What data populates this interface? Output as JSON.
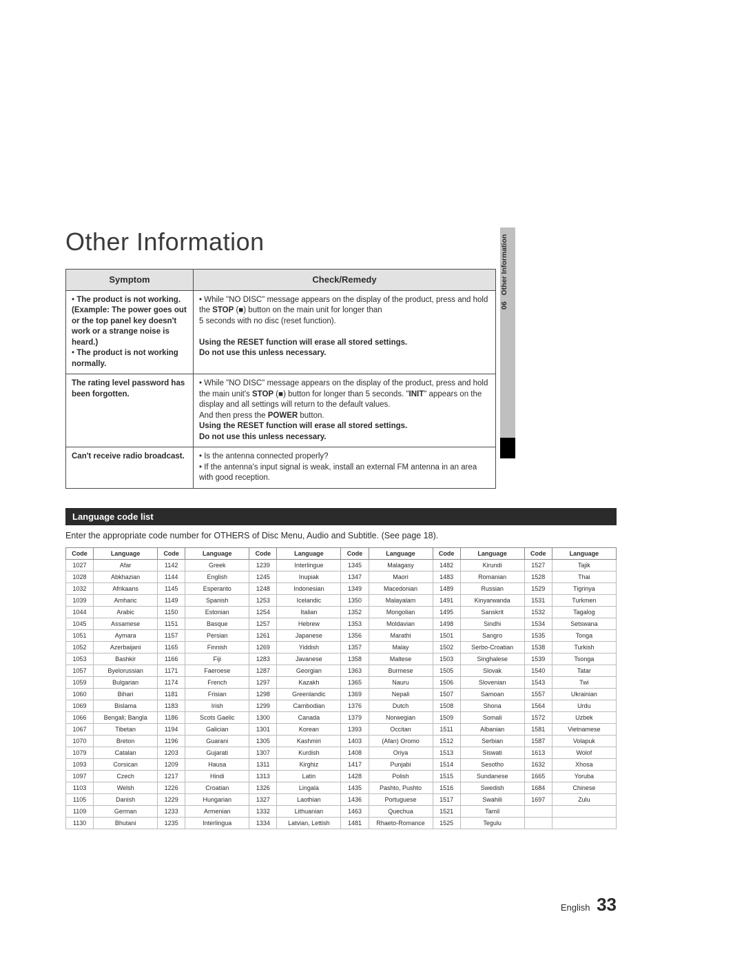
{
  "title": "Other Information",
  "chapter_num": "06",
  "chapter_label": "Other Information",
  "footer_lang": "English",
  "footer_page": "33",
  "sym_header": {
    "col1": "Symptom",
    "col2": "Check/Remedy"
  },
  "sym_rows": [
    {
      "symptom_html": "• <b>The product is not working. (Example: The power goes out or the top panel key doesn't work or a strange noise is heard.)</b><br>• <b>The product is not working normally.</b>",
      "remedy_html": "• While \"NO DISC\" message appears on the display of the product, press and hold the <b>STOP</b> (<b>■</b>) button on the main unit for longer than<br>5 seconds with no disc (reset function).<br><br><b>Using the RESET function will erase all stored settings.<br>Do not use this unless necessary.</b>"
    },
    {
      "symptom_html": "<b>The rating level password has been forgotten.</b>",
      "remedy_html": "• While \"NO DISC\" message appears on the display of the product, press and hold the main unit's <b>STOP</b> (<b>■</b>) button for longer than 5 seconds. \"<b>INIT</b>\" appears on the display and all settings will return to the default values.<br>And then press the <b>POWER</b> button.<br><b>Using the RESET function will erase all stored settings.<br>Do not use this unless necessary.</b>"
    },
    {
      "symptom_html": "<b>Can't receive radio broadcast.</b>",
      "remedy_html": "• Is the antenna connected properly?<br>• If the antenna's input signal is weak, install an external FM antenna in an area with good reception."
    }
  ],
  "lang_section_title": "Language code list",
  "lang_intro": "Enter the appropriate code number for OTHERS of Disc Menu, Audio and Subtitle. (See page 18).",
  "lang_header": [
    "Code",
    "Language",
    "Code",
    "Language",
    "Code",
    "Language",
    "Code",
    "Language",
    "Code",
    "Language",
    "Code",
    "Language"
  ],
  "lang_rows": [
    [
      "1027",
      "Afar",
      "1142",
      "Greek",
      "1239",
      "Interlingue",
      "1345",
      "Malagasy",
      "1482",
      "Kirundi",
      "1527",
      "Tajik"
    ],
    [
      "1028",
      "Abkhazian",
      "1144",
      "English",
      "1245",
      "Inupiak",
      "1347",
      "Maori",
      "1483",
      "Romanian",
      "1528",
      "Thai"
    ],
    [
      "1032",
      "Afrikaans",
      "1145",
      "Esperanto",
      "1248",
      "Indonesian",
      "1349",
      "Macedonian",
      "1489",
      "Russian",
      "1529",
      "Tigrinya"
    ],
    [
      "1039",
      "Amharic",
      "1149",
      "Spanish",
      "1253",
      "Icelandic",
      "1350",
      "Malayalam",
      "1491",
      "Kinyarwanda",
      "1531",
      "Turkmen"
    ],
    [
      "1044",
      "Arabic",
      "1150",
      "Estonian",
      "1254",
      "Italian",
      "1352",
      "Mongolian",
      "1495",
      "Sanskrit",
      "1532",
      "Tagalog"
    ],
    [
      "1045",
      "Assamese",
      "1151",
      "Basque",
      "1257",
      "Hebrew",
      "1353",
      "Moldavian",
      "1498",
      "Sindhi",
      "1534",
      "Setswana"
    ],
    [
      "1051",
      "Aymara",
      "1157",
      "Persian",
      "1261",
      "Japanese",
      "1356",
      "Marathi",
      "1501",
      "Sangro",
      "1535",
      "Tonga"
    ],
    [
      "1052",
      "Azerbaijani",
      "1165",
      "Finnish",
      "1269",
      "Yiddish",
      "1357",
      "Malay",
      "1502",
      "Serbo-Croatian",
      "1538",
      "Turkish"
    ],
    [
      "1053",
      "Bashkir",
      "1166",
      "Fiji",
      "1283",
      "Javanese",
      "1358",
      "Maltese",
      "1503",
      "Singhalese",
      "1539",
      "Tsonga"
    ],
    [
      "1057",
      "Byelorussian",
      "1171",
      "Faeroese",
      "1287",
      "Georgian",
      "1363",
      "Burmese",
      "1505",
      "Slovak",
      "1540",
      "Tatar"
    ],
    [
      "1059",
      "Bulgarian",
      "1174",
      "French",
      "1297",
      "Kazakh",
      "1365",
      "Nauru",
      "1506",
      "Slovenian",
      "1543",
      "Twi"
    ],
    [
      "1060",
      "Bihari",
      "1181",
      "Frisian",
      "1298",
      "Greenlandic",
      "1369",
      "Nepali",
      "1507",
      "Samoan",
      "1557",
      "Ukrainian"
    ],
    [
      "1069",
      "Bislama",
      "1183",
      "Irish",
      "1299",
      "Cambodian",
      "1376",
      "Dutch",
      "1508",
      "Shona",
      "1564",
      "Urdu"
    ],
    [
      "1066",
      "Bengali; Bangla",
      "1186",
      "Scots Gaelic",
      "1300",
      "Canada",
      "1379",
      "Norwegian",
      "1509",
      "Somali",
      "1572",
      "Uzbek"
    ],
    [
      "1067",
      "Tibetan",
      "1194",
      "Galician",
      "1301",
      "Korean",
      "1393",
      "Occitan",
      "1511",
      "Albanian",
      "1581",
      "Vietnamese"
    ],
    [
      "1070",
      "Breton",
      "1196",
      "Guarani",
      "1305",
      "Kashmiri",
      "1403",
      "(Afan) Oromo",
      "1512",
      "Serbian",
      "1587",
      "Volapuk"
    ],
    [
      "1079",
      "Catalan",
      "1203",
      "Gujarati",
      "1307",
      "Kurdish",
      "1408",
      "Oriya",
      "1513",
      "Siswati",
      "1613",
      "Wolof"
    ],
    [
      "1093",
      "Corsican",
      "1209",
      "Hausa",
      "1311",
      "Kirghiz",
      "1417",
      "Punjabi",
      "1514",
      "Sesotho",
      "1632",
      "Xhosa"
    ],
    [
      "1097",
      "Czech",
      "1217",
      "Hindi",
      "1313",
      "Latin",
      "1428",
      "Polish",
      "1515",
      "Sundanese",
      "1665",
      "Yoruba"
    ],
    [
      "1103",
      "Welsh",
      "1226",
      "Croatian",
      "1326",
      "Lingala",
      "1435",
      "Pashto, Pushto",
      "1516",
      "Swedish",
      "1684",
      "Chinese"
    ],
    [
      "1105",
      "Danish",
      "1229",
      "Hungarian",
      "1327",
      "Laothian",
      "1436",
      "Portuguese",
      "1517",
      "Swahili",
      "1697",
      "Zulu"
    ],
    [
      "1109",
      "German",
      "1233",
      "Armenian",
      "1332",
      "Lithuanian",
      "1463",
      "Quechua",
      "1521",
      "Tamil",
      "",
      ""
    ],
    [
      "1130",
      "Bhutani",
      "1235",
      "Interlingua",
      "1334",
      "Latvian, Lettish",
      "1481",
      "Rhaeto-Romance",
      "1525",
      "Tegulu",
      "",
      ""
    ]
  ]
}
